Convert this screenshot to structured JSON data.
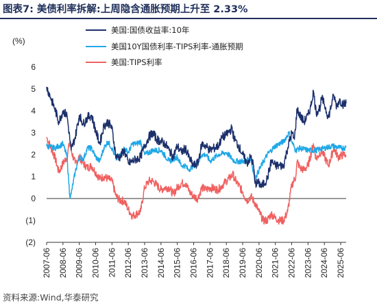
{
  "title": "图表7:   美债利率拆解:上周隐含通胀预期上升至 2.33%",
  "source": "资料来源:Wind,华泰研究",
  "chart_data": {
    "type": "line",
    "ylabel": "(%)",
    "ylim": [
      -2,
      6
    ],
    "yticks": [
      "(2)",
      "(1)",
      "0",
      "1",
      "2",
      "3",
      "4",
      "5",
      "6"
    ],
    "ytick_values": [
      -2,
      -1,
      0,
      1,
      2,
      3,
      4,
      5,
      6
    ],
    "xticks": [
      "2007-06",
      "2008-06",
      "2009-06",
      "2010-06",
      "2011-06",
      "2012-06",
      "2013-06",
      "2014-06",
      "2015-06",
      "2016-06",
      "2017-06",
      "2018-06",
      "2019-06",
      "2020-06",
      "2021-06",
      "2022-06",
      "2023-06",
      "2024-06",
      "2025-06"
    ],
    "xlim": [
      "2007-06",
      "2025-10"
    ],
    "legend_position": "top-left",
    "grid": false,
    "series": [
      {
        "name": "美国:国债收益率:10年",
        "color": "#1b2f6b",
        "points": [
          [
            "2007-06",
            5.1
          ],
          [
            "2007-09",
            4.6
          ],
          [
            "2007-12",
            4.1
          ],
          [
            "2008-03",
            3.5
          ],
          [
            "2008-06",
            4.0
          ],
          [
            "2008-09",
            3.8
          ],
          [
            "2008-12",
            2.2
          ],
          [
            "2009-03",
            2.8
          ],
          [
            "2009-06",
            3.8
          ],
          [
            "2009-09",
            3.4
          ],
          [
            "2009-12",
            3.7
          ],
          [
            "2010-03",
            3.8
          ],
          [
            "2010-06",
            3.1
          ],
          [
            "2010-09",
            2.5
          ],
          [
            "2010-12",
            3.3
          ],
          [
            "2011-03",
            3.5
          ],
          [
            "2011-06",
            3.2
          ],
          [
            "2011-09",
            1.9
          ],
          [
            "2011-12",
            1.9
          ],
          [
            "2012-03",
            2.2
          ],
          [
            "2012-06",
            1.6
          ],
          [
            "2012-09",
            1.7
          ],
          [
            "2012-12",
            1.8
          ],
          [
            "2013-03",
            1.9
          ],
          [
            "2013-06",
            2.4
          ],
          [
            "2013-09",
            2.8
          ],
          [
            "2013-12",
            3.0
          ],
          [
            "2014-03",
            2.7
          ],
          [
            "2014-06",
            2.6
          ],
          [
            "2014-09",
            2.5
          ],
          [
            "2014-12",
            2.2
          ],
          [
            "2015-03",
            1.9
          ],
          [
            "2015-06",
            2.4
          ],
          [
            "2015-09",
            2.1
          ],
          [
            "2015-12",
            2.3
          ],
          [
            "2016-03",
            1.8
          ],
          [
            "2016-06",
            1.5
          ],
          [
            "2016-09",
            1.6
          ],
          [
            "2016-12",
            2.5
          ],
          [
            "2017-03",
            2.4
          ],
          [
            "2017-06",
            2.2
          ],
          [
            "2017-09",
            2.3
          ],
          [
            "2017-12",
            2.4
          ],
          [
            "2018-03",
            2.8
          ],
          [
            "2018-06",
            2.9
          ],
          [
            "2018-10",
            3.2
          ],
          [
            "2018-12",
            2.7
          ],
          [
            "2019-03",
            2.4
          ],
          [
            "2019-06",
            2.0
          ],
          [
            "2019-09",
            1.6
          ],
          [
            "2019-12",
            1.9
          ],
          [
            "2020-02",
            1.5
          ],
          [
            "2020-03",
            0.7
          ],
          [
            "2020-06",
            0.7
          ],
          [
            "2020-08",
            0.55
          ],
          [
            "2020-12",
            0.9
          ],
          [
            "2021-03",
            1.7
          ],
          [
            "2021-06",
            1.5
          ],
          [
            "2021-09",
            1.5
          ],
          [
            "2021-12",
            1.5
          ],
          [
            "2022-03",
            2.3
          ],
          [
            "2022-06",
            3.0
          ],
          [
            "2022-08",
            2.7
          ],
          [
            "2022-10",
            4.1
          ],
          [
            "2022-12",
            3.8
          ],
          [
            "2023-03",
            3.5
          ],
          [
            "2023-06",
            3.8
          ],
          [
            "2023-08",
            4.2
          ],
          [
            "2023-10",
            4.9
          ],
          [
            "2023-12",
            3.9
          ],
          [
            "2024-03",
            4.2
          ],
          [
            "2024-04",
            4.6
          ],
          [
            "2024-06",
            4.3
          ],
          [
            "2024-09",
            3.7
          ],
          [
            "2024-12",
            4.5
          ],
          [
            "2025-01",
            4.7
          ],
          [
            "2025-03",
            4.2
          ],
          [
            "2025-05",
            4.5
          ],
          [
            "2025-08",
            4.3
          ],
          [
            "2025-10",
            4.35
          ]
        ]
      },
      {
        "name": "美国10Y国债利率-TIPS利率-通胀预期",
        "color": "#1fa8e8",
        "points": [
          [
            "2007-06",
            2.4
          ],
          [
            "2007-12",
            2.3
          ],
          [
            "2008-03",
            2.4
          ],
          [
            "2008-06",
            2.5
          ],
          [
            "2008-09",
            1.9
          ],
          [
            "2008-11",
            0.1
          ],
          [
            "2008-12",
            0.2
          ],
          [
            "2009-03",
            1.2
          ],
          [
            "2009-06",
            1.9
          ],
          [
            "2009-09",
            1.8
          ],
          [
            "2009-12",
            2.3
          ],
          [
            "2010-03",
            2.3
          ],
          [
            "2010-06",
            1.9
          ],
          [
            "2010-09",
            1.7
          ],
          [
            "2010-12",
            2.3
          ],
          [
            "2011-03",
            2.6
          ],
          [
            "2011-06",
            2.3
          ],
          [
            "2011-09",
            1.8
          ],
          [
            "2011-12",
            2.0
          ],
          [
            "2012-03",
            2.3
          ],
          [
            "2012-06",
            2.1
          ],
          [
            "2012-09",
            2.5
          ],
          [
            "2012-12",
            2.5
          ],
          [
            "2013-03",
            2.6
          ],
          [
            "2013-06",
            2.0
          ],
          [
            "2013-12",
            2.2
          ],
          [
            "2014-06",
            2.2
          ],
          [
            "2014-12",
            1.7
          ],
          [
            "2015-03",
            1.8
          ],
          [
            "2015-06",
            1.9
          ],
          [
            "2015-09",
            1.5
          ],
          [
            "2015-12",
            1.5
          ],
          [
            "2016-02",
            1.3
          ],
          [
            "2016-06",
            1.5
          ],
          [
            "2016-09",
            1.6
          ],
          [
            "2016-12",
            2.0
          ],
          [
            "2017-03",
            2.0
          ],
          [
            "2017-06",
            1.7
          ],
          [
            "2017-12",
            2.0
          ],
          [
            "2018-06",
            2.1
          ],
          [
            "2018-12",
            1.7
          ],
          [
            "2019-06",
            1.7
          ],
          [
            "2019-12",
            1.8
          ],
          [
            "2020-03",
            0.9
          ],
          [
            "2020-06",
            1.3
          ],
          [
            "2020-12",
            2.0
          ],
          [
            "2021-06",
            2.4
          ],
          [
            "2021-12",
            2.6
          ],
          [
            "2022-04",
            3.0
          ],
          [
            "2022-06",
            2.6
          ],
          [
            "2022-09",
            2.2
          ],
          [
            "2022-12",
            2.3
          ],
          [
            "2023-06",
            2.2
          ],
          [
            "2023-12",
            2.2
          ],
          [
            "2024-06",
            2.3
          ],
          [
            "2024-12",
            2.4
          ],
          [
            "2025-06",
            2.3
          ],
          [
            "2025-10",
            2.33
          ]
        ]
      },
      {
        "name": "美国:TIPS利率",
        "color": "#f06060",
        "points": [
          [
            "2007-06",
            2.8
          ],
          [
            "2007-12",
            1.9
          ],
          [
            "2008-03",
            1.2
          ],
          [
            "2008-06",
            1.6
          ],
          [
            "2008-09",
            1.9
          ],
          [
            "2008-11",
            2.6
          ],
          [
            "2008-12",
            2.2
          ],
          [
            "2009-03",
            1.6
          ],
          [
            "2009-06",
            1.9
          ],
          [
            "2009-09",
            1.6
          ],
          [
            "2009-12",
            1.4
          ],
          [
            "2010-03",
            1.5
          ],
          [
            "2010-06",
            1.2
          ],
          [
            "2010-09",
            0.9
          ],
          [
            "2010-12",
            1.0
          ],
          [
            "2011-03",
            0.9
          ],
          [
            "2011-06",
            0.8
          ],
          [
            "2011-09",
            0.1
          ],
          [
            "2011-12",
            -0.1
          ],
          [
            "2012-03",
            -0.1
          ],
          [
            "2012-06",
            -0.5
          ],
          [
            "2012-09",
            -0.8
          ],
          [
            "2012-12",
            -0.7
          ],
          [
            "2013-03",
            -0.6
          ],
          [
            "2013-06",
            0.5
          ],
          [
            "2013-09",
            0.8
          ],
          [
            "2013-12",
            0.8
          ],
          [
            "2014-03",
            0.6
          ],
          [
            "2014-06",
            0.4
          ],
          [
            "2014-09",
            0.5
          ],
          [
            "2014-12",
            0.5
          ],
          [
            "2015-03",
            0.2
          ],
          [
            "2015-06",
            0.5
          ],
          [
            "2015-09",
            0.7
          ],
          [
            "2015-12",
            0.7
          ],
          [
            "2016-03",
            0.3
          ],
          [
            "2016-06",
            0.1
          ],
          [
            "2016-09",
            0.0
          ],
          [
            "2016-12",
            0.5
          ],
          [
            "2017-03",
            0.4
          ],
          [
            "2017-06",
            0.5
          ],
          [
            "2017-12",
            0.4
          ],
          [
            "2018-03",
            0.6
          ],
          [
            "2018-06",
            0.8
          ],
          [
            "2018-11",
            1.1
          ],
          [
            "2018-12",
            0.9
          ],
          [
            "2019-06",
            0.3
          ],
          [
            "2019-09",
            -0.1
          ],
          [
            "2019-12",
            0.1
          ],
          [
            "2020-03",
            -0.2
          ],
          [
            "2020-06",
            -0.6
          ],
          [
            "2020-09",
            -1.0
          ],
          [
            "2020-12",
            -1.0
          ],
          [
            "2021-03",
            -0.7
          ],
          [
            "2021-06",
            -0.9
          ],
          [
            "2021-09",
            -1.0
          ],
          [
            "2021-12",
            -1.0
          ],
          [
            "2022-03",
            -0.6
          ],
          [
            "2022-06",
            0.6
          ],
          [
            "2022-09",
            1.0
          ],
          [
            "2022-10",
            1.7
          ],
          [
            "2022-12",
            1.4
          ],
          [
            "2023-03",
            1.3
          ],
          [
            "2023-06",
            1.5
          ],
          [
            "2023-10",
            2.5
          ],
          [
            "2023-12",
            1.8
          ],
          [
            "2024-04",
            2.2
          ],
          [
            "2024-09",
            1.5
          ],
          [
            "2024-12",
            2.1
          ],
          [
            "2025-01",
            2.3
          ],
          [
            "2025-04",
            1.9
          ],
          [
            "2025-08",
            2.0
          ],
          [
            "2025-10",
            2.0
          ]
        ]
      }
    ]
  }
}
